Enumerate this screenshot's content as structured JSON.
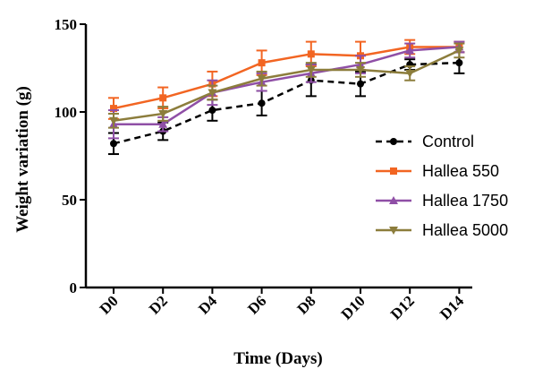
{
  "chart_data": {
    "type": "line",
    "xlabel": "Time (Days)",
    "ylabel": "Weight variation (g)",
    "ylim": [
      0,
      150
    ],
    "yticks": [
      0,
      50,
      100,
      150
    ],
    "categories": [
      "D0",
      "D2",
      "D4",
      "D6",
      "D8",
      "D10",
      "D12",
      "D14"
    ],
    "legend_position": "right",
    "series": [
      {
        "name": "Control",
        "color": "#000000",
        "dashed": true,
        "marker": "circle",
        "values": [
          82,
          89,
          101,
          105,
          118,
          116,
          127,
          128
        ],
        "errors": [
          6,
          5,
          6,
          7,
          9,
          7,
          3,
          6
        ]
      },
      {
        "name": "Hallea 550",
        "color": "#f26522",
        "dashed": false,
        "marker": "square",
        "values": [
          102,
          108,
          116,
          128,
          133,
          132,
          137,
          137
        ],
        "errors": [
          6,
          6,
          7,
          7,
          7,
          8,
          4,
          3
        ]
      },
      {
        "name": "Hallea 1750",
        "color": "#8f4fa6",
        "dashed": false,
        "marker": "triangle-up",
        "values": [
          93,
          93,
          111,
          117,
          122,
          127,
          135,
          137
        ],
        "errors": [
          8,
          4,
          7,
          5,
          5,
          5,
          4,
          3
        ]
      },
      {
        "name": "Hallea 5000",
        "color": "#8c7d3c",
        "dashed": false,
        "marker": "triangle-down",
        "values": [
          95,
          99,
          111,
          119,
          124,
          124,
          122,
          135
        ],
        "errors": [
          4,
          4,
          4,
          4,
          4,
          4,
          4,
          4
        ]
      }
    ]
  }
}
